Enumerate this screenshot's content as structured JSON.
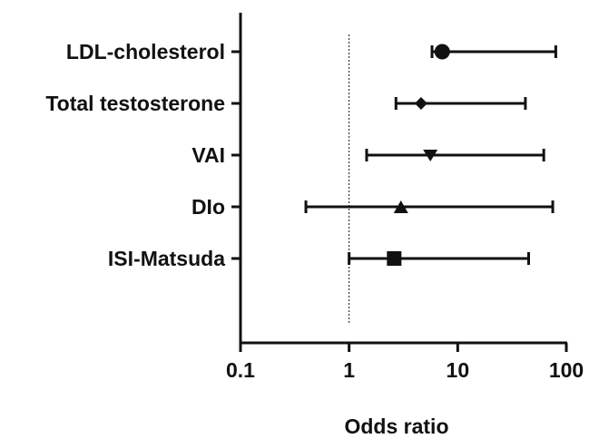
{
  "chart_data": {
    "type": "scatter",
    "subtype": "forest-plot",
    "x_scale": "log",
    "xlabel": "Odds ratio",
    "xlim": [
      0.1,
      100
    ],
    "x_ticks": [
      {
        "value": 0.1,
        "label": "0.1"
      },
      {
        "value": 1,
        "label": "1"
      },
      {
        "value": 10,
        "label": "10"
      },
      {
        "value": 100,
        "label": "100"
      }
    ],
    "reference_line": 1,
    "grid": false,
    "rows": [
      {
        "label": "LDL-cholesterol",
        "or": 7.2,
        "ci_low": 5.8,
        "ci_high": 80,
        "marker": "circle"
      },
      {
        "label": "Total testosterone",
        "or": 4.6,
        "ci_low": 2.7,
        "ci_high": 42,
        "marker": "diamond"
      },
      {
        "label": "VAI",
        "or": 5.6,
        "ci_low": 1.45,
        "ci_high": 62,
        "marker": "triangle-down"
      },
      {
        "label": "DIo",
        "or": 3.0,
        "ci_low": 0.4,
        "ci_high": 75,
        "marker": "triangle-up"
      },
      {
        "label": "ISI-Matsuda",
        "or": 2.6,
        "ci_low": 1.0,
        "ci_high": 45,
        "marker": "square"
      }
    ],
    "colors": {
      "ink": "#111111"
    }
  }
}
